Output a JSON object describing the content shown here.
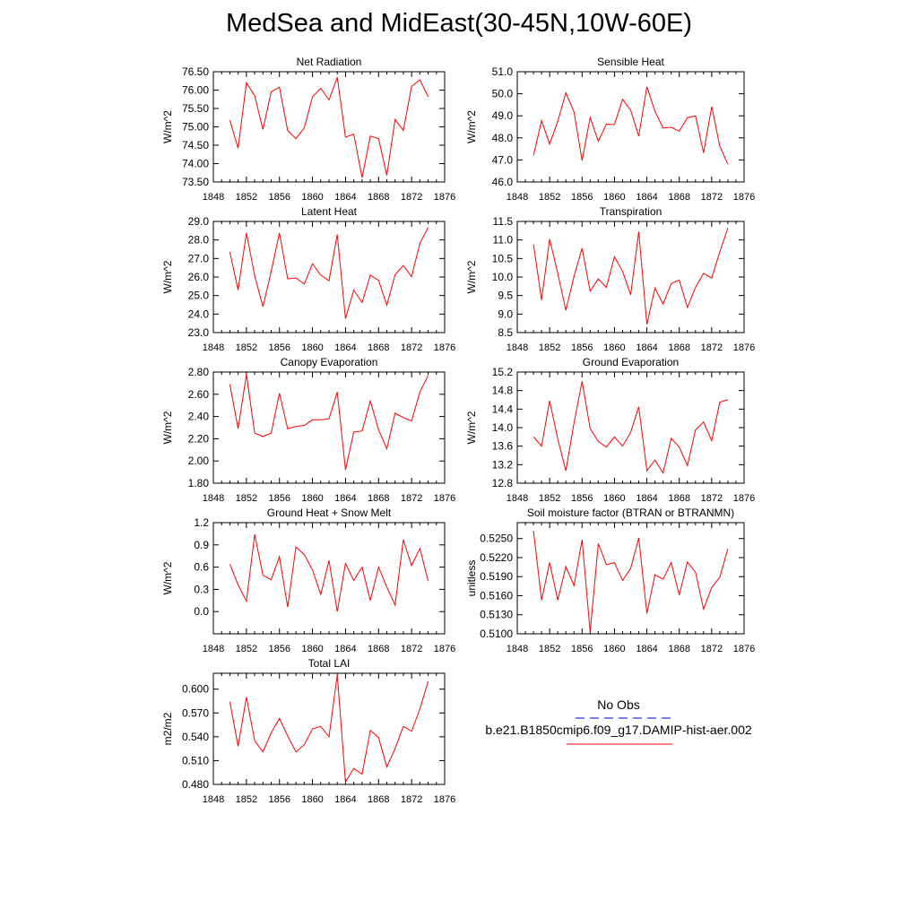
{
  "title": "MedSea and MidEast(30-45N,10W-60E)",
  "legend": {
    "title": "No Obs",
    "series_label": "b.e21.B1850cmip6.f09_g17.DAMIP-hist-aer.002",
    "series_color": "#ff0000",
    "obs_color": "#0000cc"
  },
  "chart_data": [
    {
      "type": "line",
      "title": "Net Radiation",
      "ylabel": "W/m^2",
      "xlabel": "",
      "xlim": [
        1848,
        1876
      ],
      "ylim": [
        73.5,
        76.5
      ],
      "xticks": [
        "1848",
        "1852",
        "1856",
        "1860",
        "1864",
        "1868",
        "1872",
        "1876"
      ],
      "yticks": [
        "73.50",
        "74.00",
        "74.50",
        "75.00",
        "75.50",
        "76.00",
        "76.50"
      ],
      "x": [
        1850,
        1851,
        1852,
        1853,
        1854,
        1855,
        1856,
        1857,
        1858,
        1859,
        1860,
        1861,
        1862,
        1863,
        1864,
        1865,
        1866,
        1867,
        1868,
        1869,
        1870,
        1871,
        1872,
        1873,
        1874
      ],
      "values": [
        75.18,
        74.42,
        76.2,
        75.85,
        74.93,
        75.95,
        76.08,
        74.9,
        74.68,
        74.97,
        75.82,
        76.05,
        75.73,
        76.35,
        74.72,
        74.8,
        73.62,
        74.75,
        74.68,
        73.68,
        75.2,
        74.9,
        76.1,
        76.28,
        75.82
      ]
    },
    {
      "type": "line",
      "title": "Sensible Heat",
      "ylabel": "W/m^2",
      "xlabel": "",
      "xlim": [
        1848,
        1876
      ],
      "ylim": [
        46.0,
        51.0
      ],
      "xticks": [
        "1848",
        "1852",
        "1856",
        "1860",
        "1864",
        "1868",
        "1872",
        "1876"
      ],
      "yticks": [
        "46.0",
        "47.0",
        "48.0",
        "49.0",
        "50.0",
        "51.0"
      ],
      "x": [
        1850,
        1851,
        1852,
        1853,
        1854,
        1855,
        1856,
        1857,
        1858,
        1859,
        1860,
        1861,
        1862,
        1863,
        1864,
        1865,
        1866,
        1867,
        1868,
        1869,
        1870,
        1871,
        1872,
        1873,
        1874
      ],
      "values": [
        47.2,
        48.78,
        47.72,
        48.75,
        50.05,
        49.18,
        46.97,
        48.92,
        47.85,
        48.62,
        48.6,
        49.75,
        49.25,
        48.08,
        50.32,
        49.2,
        48.45,
        48.48,
        48.3,
        48.92,
        49.0,
        47.32,
        49.42,
        47.62,
        46.8
      ]
    },
    {
      "type": "line",
      "title": "Latent Heat",
      "ylabel": "W/m^2",
      "xlabel": "",
      "xlim": [
        1848,
        1876
      ],
      "ylim": [
        23.0,
        29.0
      ],
      "xticks": [
        "1848",
        "1852",
        "1856",
        "1860",
        "1864",
        "1868",
        "1872",
        "1876"
      ],
      "yticks": [
        "23.0",
        "24.0",
        "25.0",
        "26.0",
        "27.0",
        "28.0",
        "29.0"
      ],
      "x": [
        1850,
        1851,
        1852,
        1853,
        1854,
        1855,
        1856,
        1857,
        1858,
        1859,
        1860,
        1861,
        1862,
        1863,
        1864,
        1865,
        1866,
        1867,
        1868,
        1869,
        1870,
        1871,
        1872,
        1873,
        1874
      ],
      "values": [
        27.35,
        25.3,
        28.38,
        26.07,
        24.4,
        26.3,
        28.38,
        25.9,
        25.95,
        25.62,
        26.72,
        26.1,
        25.8,
        28.3,
        23.75,
        25.3,
        24.62,
        26.1,
        25.82,
        24.48,
        26.12,
        26.62,
        26.02,
        27.82,
        28.68
      ]
    },
    {
      "type": "line",
      "title": "Transpiration",
      "ylabel": "W/m^2",
      "xlabel": "",
      "xlim": [
        1848,
        1876
      ],
      "ylim": [
        8.5,
        11.5
      ],
      "xticks": [
        "1848",
        "1852",
        "1856",
        "1860",
        "1864",
        "1868",
        "1872",
        "1876"
      ],
      "yticks": [
        "8.5",
        "9.0",
        "9.5",
        "10.0",
        "10.5",
        "11.0",
        "11.5"
      ],
      "x": [
        1850,
        1851,
        1852,
        1853,
        1854,
        1855,
        1856,
        1857,
        1858,
        1859,
        1860,
        1861,
        1862,
        1863,
        1864,
        1865,
        1866,
        1867,
        1868,
        1869,
        1870,
        1871,
        1872,
        1873,
        1874
      ],
      "values": [
        10.88,
        9.38,
        11.02,
        10.1,
        9.1,
        10.02,
        10.78,
        9.62,
        9.95,
        9.72,
        10.55,
        10.15,
        9.52,
        11.22,
        8.72,
        9.7,
        9.27,
        9.82,
        9.92,
        9.18,
        9.72,
        10.1,
        9.97,
        10.68,
        11.32
      ]
    },
    {
      "type": "line",
      "title": "Canopy Evaporation",
      "ylabel": "W/m^2",
      "xlabel": "",
      "xlim": [
        1848,
        1876
      ],
      "ylim": [
        1.8,
        2.8
      ],
      "xticks": [
        "1848",
        "1852",
        "1856",
        "1860",
        "1864",
        "1868",
        "1872",
        "1876"
      ],
      "yticks": [
        "1.80",
        "2.00",
        "2.20",
        "2.40",
        "2.60",
        "2.80"
      ],
      "x": [
        1850,
        1851,
        1852,
        1853,
        1854,
        1855,
        1856,
        1857,
        1858,
        1859,
        1860,
        1861,
        1862,
        1863,
        1864,
        1865,
        1866,
        1867,
        1868,
        1869,
        1870,
        1871,
        1872,
        1873,
        1874
      ],
      "values": [
        2.69,
        2.29,
        2.78,
        2.25,
        2.22,
        2.25,
        2.61,
        2.29,
        2.31,
        2.32,
        2.37,
        2.37,
        2.38,
        2.62,
        1.92,
        2.26,
        2.27,
        2.54,
        2.28,
        2.11,
        2.43,
        2.39,
        2.36,
        2.62,
        2.77
      ]
    },
    {
      "type": "line",
      "title": "Ground Evaporation",
      "ylabel": "W/m^2",
      "xlabel": "",
      "xlim": [
        1848,
        1876
      ],
      "ylim": [
        12.8,
        15.2
      ],
      "xticks": [
        "1848",
        "1852",
        "1856",
        "1860",
        "1864",
        "1868",
        "1872",
        "1876"
      ],
      "yticks": [
        "12.8",
        "13.2",
        "13.6",
        "14.0",
        "14.4",
        "14.8",
        "15.2"
      ],
      "x": [
        1850,
        1851,
        1852,
        1853,
        1854,
        1855,
        1856,
        1857,
        1858,
        1859,
        1860,
        1861,
        1862,
        1863,
        1864,
        1865,
        1866,
        1867,
        1868,
        1869,
        1870,
        1871,
        1872,
        1873,
        1874
      ],
      "values": [
        13.8,
        13.6,
        14.58,
        13.75,
        13.07,
        14.1,
        15.0,
        13.98,
        13.7,
        13.58,
        13.8,
        13.6,
        13.9,
        14.45,
        13.07,
        13.3,
        13.02,
        13.77,
        13.58,
        13.18,
        13.95,
        14.12,
        13.72,
        14.55,
        14.6
      ]
    },
    {
      "type": "line",
      "title": "Ground Heat + Snow Melt",
      "ylabel": "W/m^2",
      "xlabel": "",
      "xlim": [
        1848,
        1876
      ],
      "ylim": [
        -0.3,
        1.2
      ],
      "xticks": [
        "1848",
        "1852",
        "1856",
        "1860",
        "1864",
        "1868",
        "1872",
        "1876"
      ],
      "yticks": [
        "0.0",
        "0.3",
        "0.6",
        "0.9",
        "1.2"
      ],
      "ytick_values": [
        0.0,
        0.3,
        0.6,
        0.9,
        1.2
      ],
      "x": [
        1850,
        1851,
        1852,
        1853,
        1854,
        1855,
        1856,
        1857,
        1858,
        1859,
        1860,
        1861,
        1862,
        1863,
        1864,
        1865,
        1866,
        1867,
        1868,
        1869,
        1870,
        1871,
        1872,
        1873,
        1874
      ],
      "values": [
        0.64,
        0.36,
        0.14,
        1.04,
        0.49,
        0.43,
        0.74,
        0.06,
        0.87,
        0.77,
        0.56,
        0.23,
        0.69,
        0.0,
        0.65,
        0.42,
        0.6,
        0.15,
        0.6,
        0.33,
        0.09,
        0.97,
        0.62,
        0.85,
        0.41
      ]
    },
    {
      "type": "line",
      "title": "Soil moisture factor (BTRAN or BTRANMN)",
      "ylabel": "unitless",
      "xlabel": "",
      "xlim": [
        1848,
        1876
      ],
      "ylim": [
        0.51,
        0.5275
      ],
      "xticks": [
        "1848",
        "1852",
        "1856",
        "1860",
        "1864",
        "1868",
        "1872",
        "1876"
      ],
      "yticks": [
        "0.5100",
        "0.5130",
        "0.5160",
        "0.5190",
        "0.5220",
        "0.5250"
      ],
      "ytick_values": [
        0.51,
        0.513,
        0.516,
        0.519,
        0.522,
        0.525
      ],
      "x": [
        1850,
        1851,
        1852,
        1853,
        1854,
        1855,
        1856,
        1857,
        1858,
        1859,
        1860,
        1861,
        1862,
        1863,
        1864,
        1865,
        1866,
        1867,
        1868,
        1869,
        1870,
        1871,
        1872,
        1873,
        1874
      ],
      "values": [
        0.5262,
        0.5153,
        0.5212,
        0.5153,
        0.5206,
        0.5176,
        0.5248,
        0.5103,
        0.5242,
        0.5209,
        0.5212,
        0.5184,
        0.5203,
        0.5251,
        0.5132,
        0.5193,
        0.5186,
        0.5212,
        0.5161,
        0.5213,
        0.5197,
        0.5139,
        0.5173,
        0.5189,
        0.5234
      ]
    },
    {
      "type": "line",
      "title": "Total LAI",
      "ylabel": "m2/m2",
      "xlabel": "",
      "xlim": [
        1848,
        1876
      ],
      "ylim": [
        0.48,
        0.62
      ],
      "xticks": [
        "1848",
        "1852",
        "1856",
        "1860",
        "1864",
        "1868",
        "1872",
        "1876"
      ],
      "yticks": [
        "0.480",
        "0.510",
        "0.540",
        "0.570",
        "0.600"
      ],
      "ytick_values": [
        0.48,
        0.51,
        0.54,
        0.57,
        0.6
      ],
      "x": [
        1850,
        1851,
        1852,
        1853,
        1854,
        1855,
        1856,
        1857,
        1858,
        1859,
        1860,
        1861,
        1862,
        1863,
        1864,
        1865,
        1866,
        1867,
        1868,
        1869,
        1870,
        1871,
        1872,
        1873,
        1874
      ],
      "values": [
        0.584,
        0.528,
        0.59,
        0.535,
        0.521,
        0.545,
        0.563,
        0.541,
        0.521,
        0.53,
        0.55,
        0.553,
        0.54,
        0.618,
        0.483,
        0.5,
        0.493,
        0.548,
        0.539,
        0.502,
        0.525,
        0.553,
        0.547,
        0.575,
        0.61
      ]
    }
  ]
}
